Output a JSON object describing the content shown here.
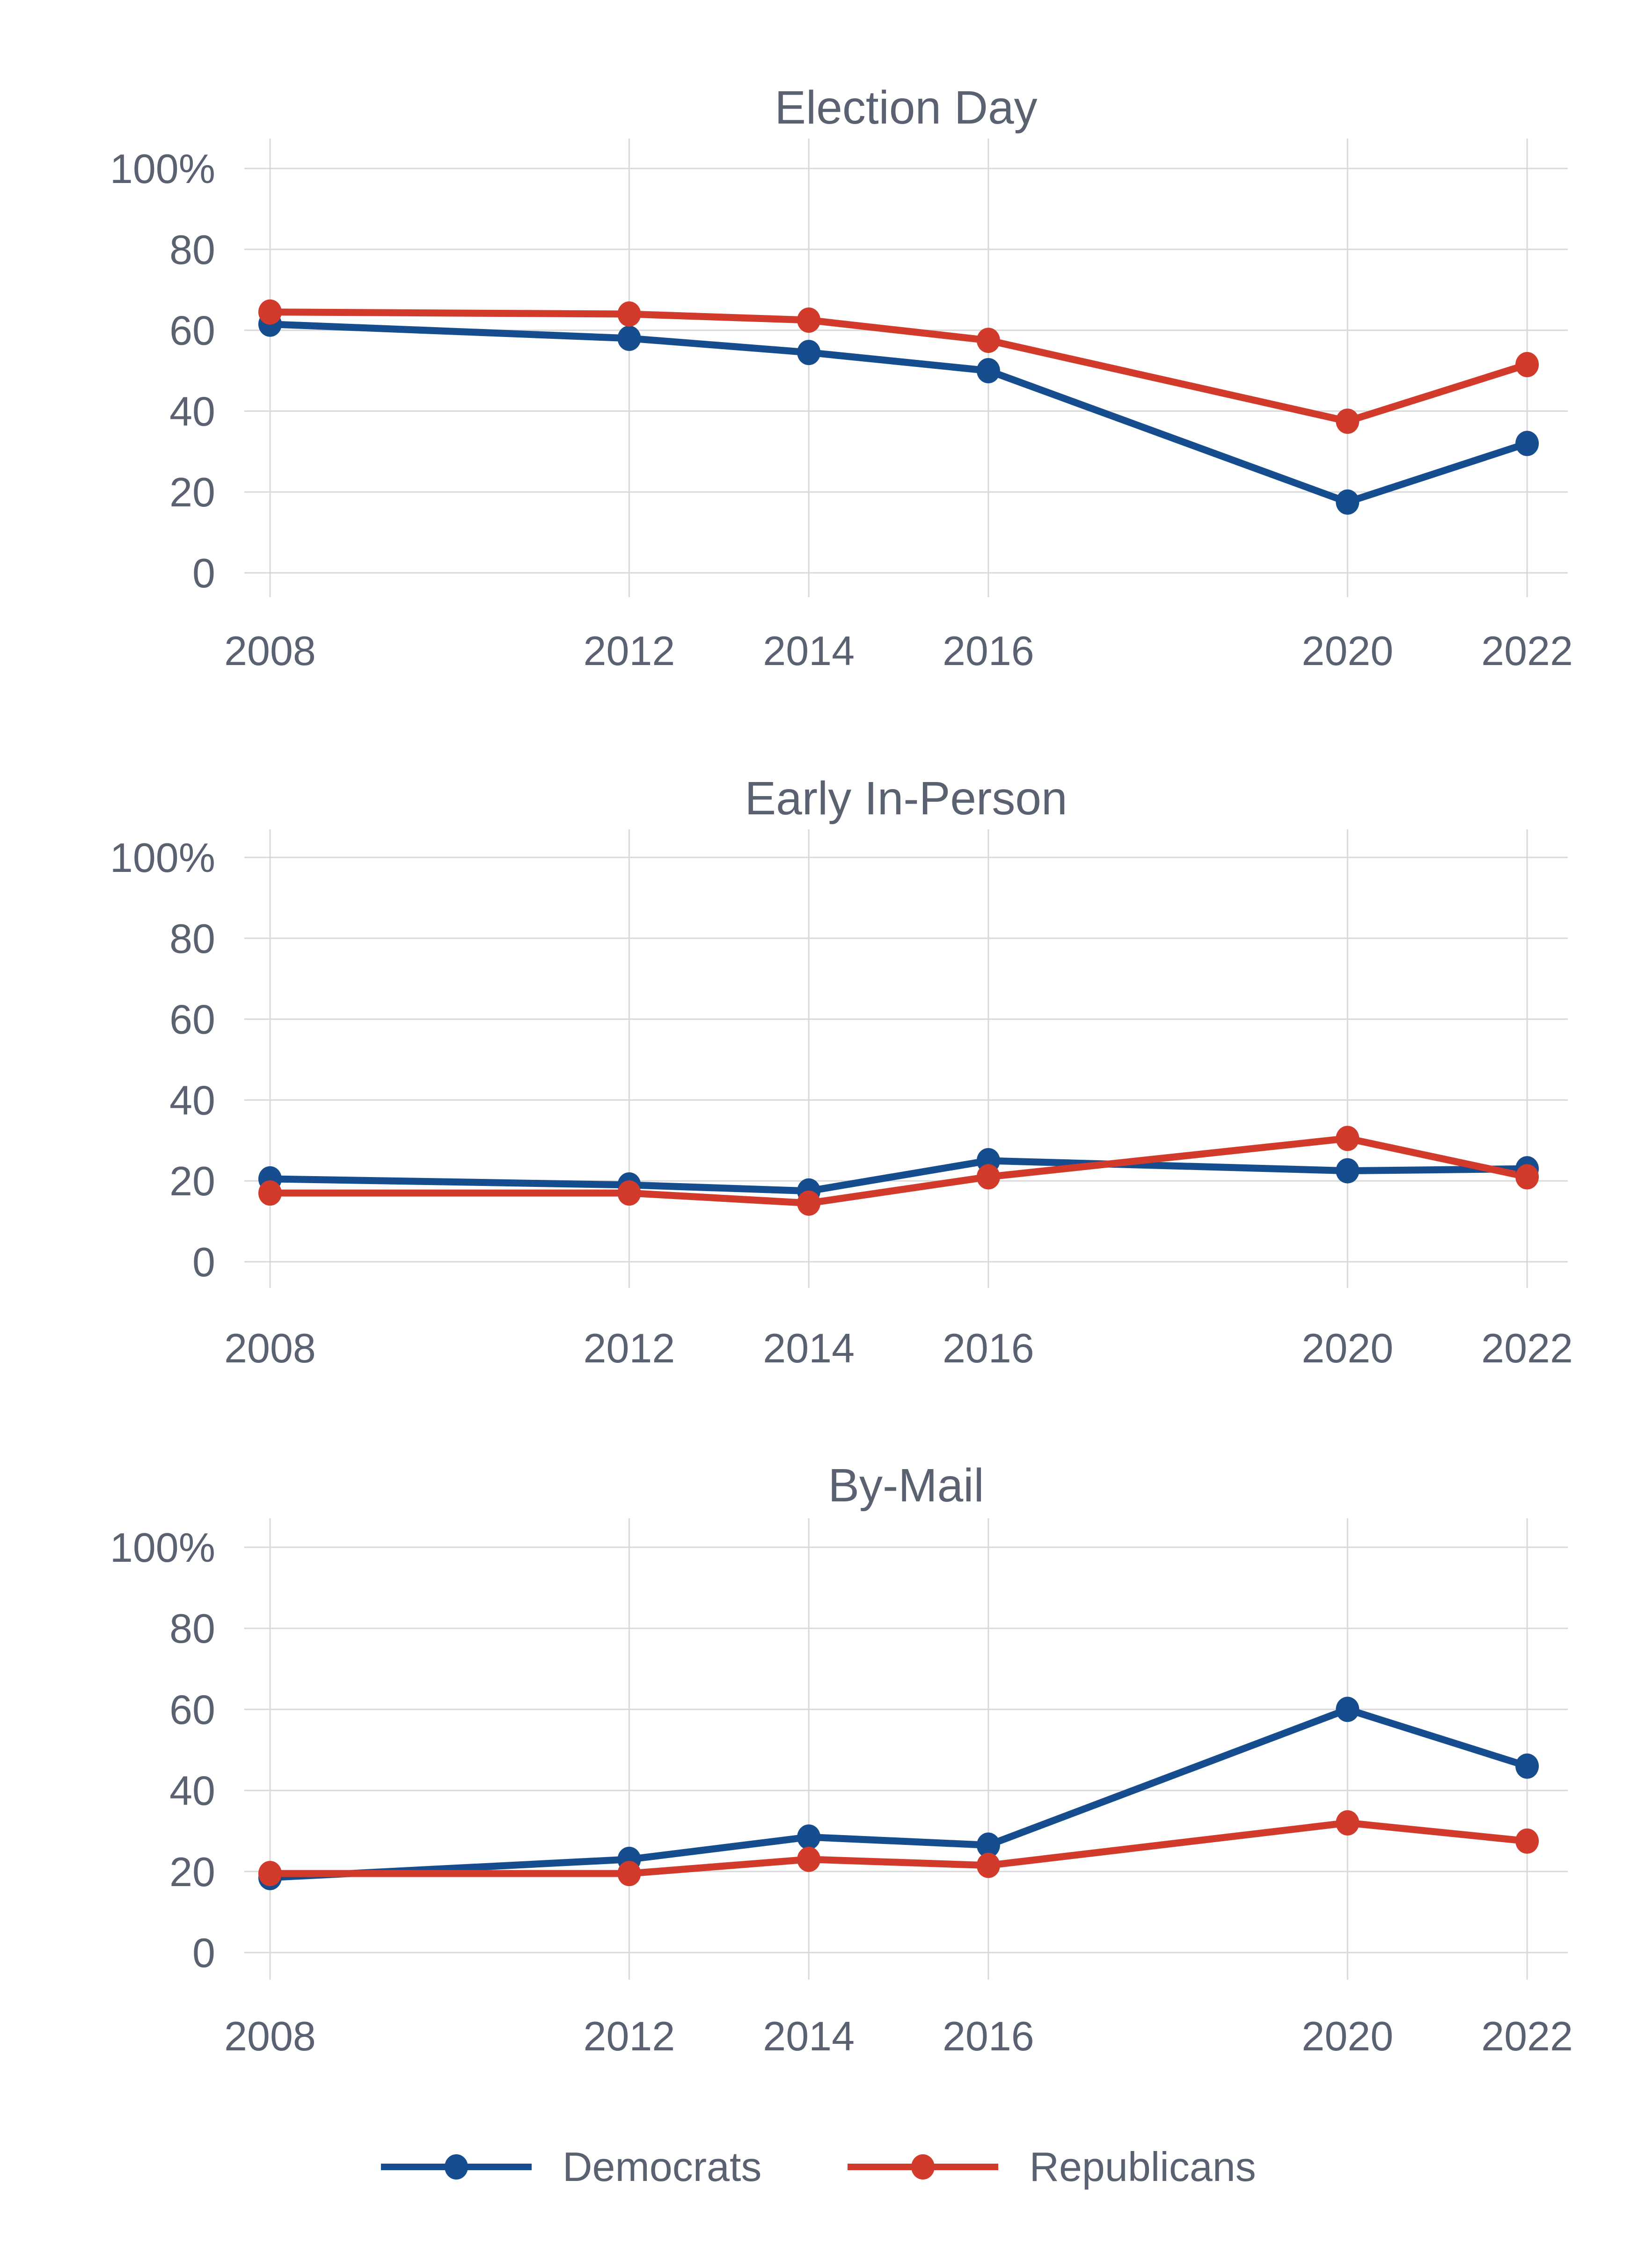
{
  "colors": {
    "democrats": "#154D8E",
    "republicans": "#D23B2C",
    "grid": "#D9D9D9",
    "text": "#5A6272",
    "background": "#FFFFFF"
  },
  "legend": [
    {
      "label": "Democrats",
      "color": "#154D8E"
    },
    {
      "label": "Republicans",
      "color": "#D23B2C"
    }
  ],
  "x_axis": {
    "tick_labels": [
      "2008",
      "2012",
      "2014",
      "2016",
      "2020",
      "2022"
    ],
    "tick_years": [
      2008,
      2012,
      2014,
      2016,
      2020,
      2022
    ]
  },
  "y_axis": {
    "tick_labels": [
      "0",
      "20",
      "40",
      "60",
      "80",
      "100%"
    ],
    "tick_values": [
      0,
      20,
      40,
      60,
      80,
      100
    ]
  },
  "chart_data": [
    {
      "type": "line",
      "title": "Election Day",
      "x": [
        2008,
        2012,
        2014,
        2016,
        2020,
        2022
      ],
      "series": [
        {
          "name": "Democrats",
          "color": "#154D8E",
          "values": [
            61.5,
            58,
            54.5,
            50,
            17.5,
            32
          ]
        },
        {
          "name": "Republicans",
          "color": "#D23B2C",
          "values": [
            64.5,
            64,
            62.5,
            57.5,
            37.5,
            51.5
          ]
        }
      ],
      "xlabel": "",
      "ylabel": "",
      "ylim": [
        0,
        100
      ],
      "grid": true,
      "legend_position": "bottom-shared"
    },
    {
      "type": "line",
      "title": "Early In-Person",
      "x": [
        2008,
        2012,
        2014,
        2016,
        2020,
        2022
      ],
      "series": [
        {
          "name": "Democrats",
          "color": "#154D8E",
          "values": [
            20.5,
            19,
            17.5,
            25,
            22.5,
            23
          ]
        },
        {
          "name": "Republicans",
          "color": "#D23B2C",
          "values": [
            17,
            17,
            14.5,
            21,
            30.5,
            21
          ]
        }
      ],
      "xlabel": "",
      "ylabel": "",
      "ylim": [
        0,
        100
      ],
      "grid": true,
      "legend_position": "bottom-shared"
    },
    {
      "type": "line",
      "title": "By-Mail",
      "x": [
        2008,
        2012,
        2014,
        2016,
        2020,
        2022
      ],
      "series": [
        {
          "name": "Democrats",
          "color": "#154D8E",
          "values": [
            18.5,
            23,
            28.5,
            26.5,
            60,
            46
          ]
        },
        {
          "name": "Republicans",
          "color": "#D23B2C",
          "values": [
            19.5,
            19.5,
            23,
            21.5,
            32,
            27.5
          ]
        }
      ],
      "xlabel": "",
      "ylabel": "",
      "ylim": [
        0,
        100
      ],
      "grid": true,
      "legend_position": "bottom-shared"
    }
  ]
}
